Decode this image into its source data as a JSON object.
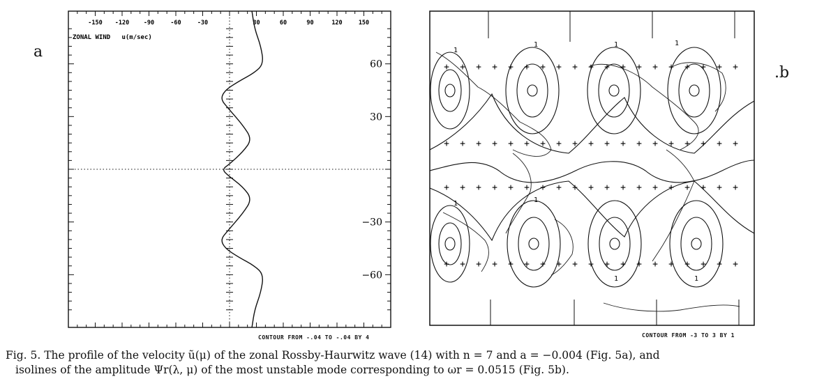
{
  "panel_a": {
    "label": "a",
    "chart_data": {
      "type": "line",
      "title": "ZONAL WIND   u(m/sec)",
      "xticks": [
        -150,
        -120,
        -90,
        -60,
        -30,
        30,
        60,
        90,
        120,
        150
      ],
      "yticks": [
        60,
        30,
        -30,
        -60
      ],
      "xlim": [
        -180,
        180
      ],
      "ylim": [
        -90,
        90
      ],
      "series": [
        {
          "x": [
            25,
            28,
            35,
            38,
            28,
            10,
            -5,
            -10,
            -2,
            15,
            25,
            15,
            0,
            -8,
            -3,
            15,
            25,
            15,
            -2,
            -10,
            -5,
            10,
            28,
            38,
            35,
            28,
            25
          ],
          "y": [
            90,
            80,
            70,
            60,
            55,
            50,
            45,
            40,
            35,
            25,
            17,
            10,
            3,
            0,
            -3,
            -10,
            -17,
            -25,
            -35,
            -40,
            -45,
            -50,
            -55,
            -60,
            -70,
            -80,
            -90
          ]
        }
      ],
      "contour_note": "CONTOUR FROM -.04 TO -.04 BY 4"
    }
  },
  "panel_b": {
    "label": ".b",
    "contour_note": "CONTOUR FROM -3 TO 3 BY 1",
    "isoline_labels": [
      "1",
      "1",
      "1",
      "1",
      "1",
      "1",
      "1",
      "1"
    ]
  },
  "caption": {
    "line1": "Fig. 5. The profile of the velocity ũ(μ) of the zonal Rossby-Haurwitz wave (14) with n = 7 and a = −0.004 (Fig. 5a), and",
    "line2": "isolines of the amplitude Ψr(λ, μ) of the most unstable mode corresponding to ωr = 0.0515 (Fig. 5b)."
  }
}
